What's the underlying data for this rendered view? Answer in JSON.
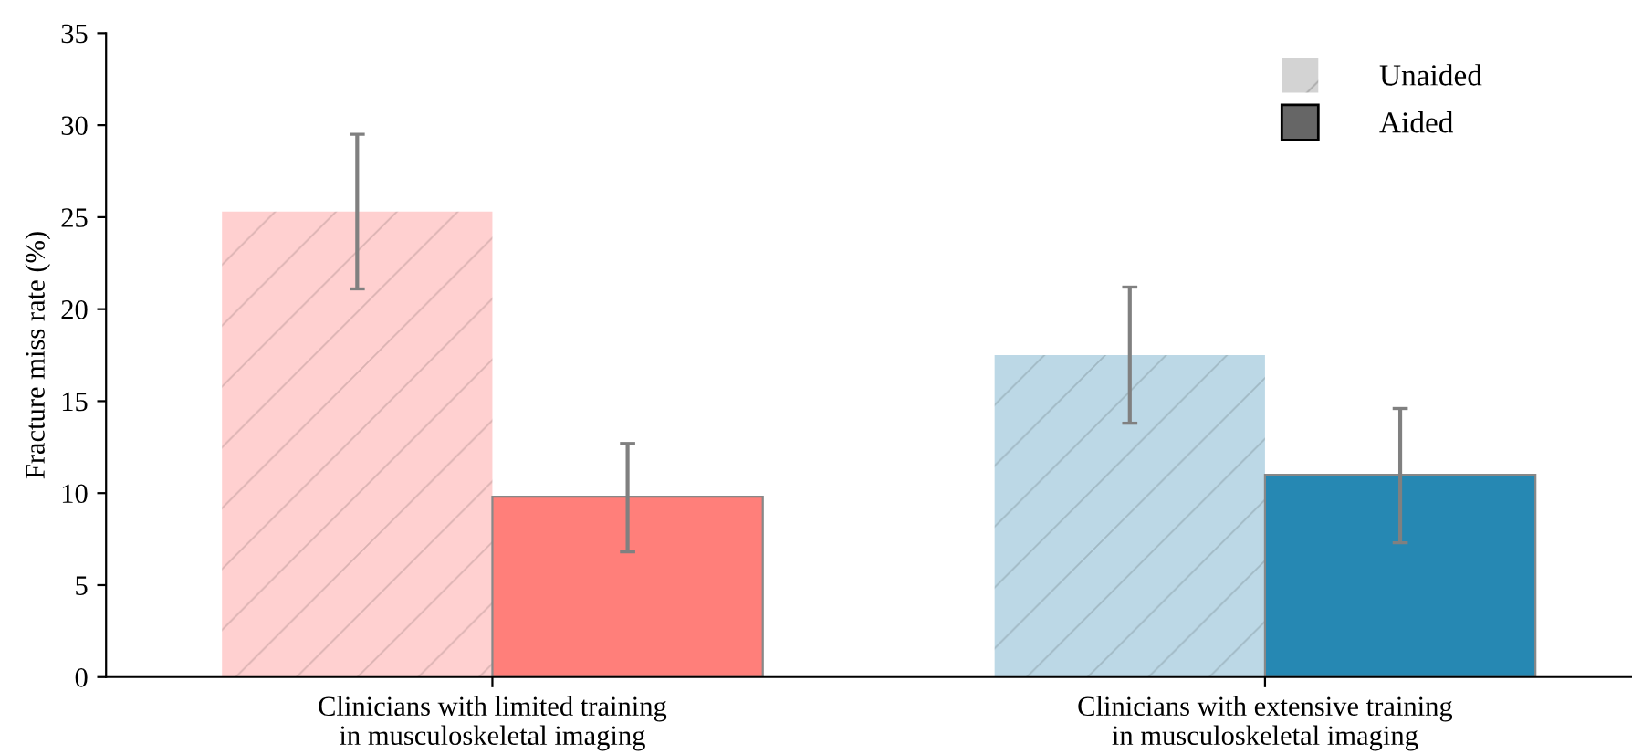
{
  "chart_data": {
    "type": "bar",
    "ylabel": "Fracture miss rate (%)",
    "categories": [
      "Clinicians with limited training\nin musculoskeletal imaging",
      "Clinicians with extensive training\nin musculoskeletal imaging"
    ],
    "series": [
      {
        "name": "Unaided",
        "color": "#d3d3d3",
        "colors": [
          "#ffd0d0",
          "#bcd8e6"
        ],
        "values": [
          25.3,
          17.5
        ],
        "errors": [
          [
            21.1,
            29.5
          ],
          [
            13.8,
            21.2
          ]
        ]
      },
      {
        "name": "Aided",
        "color": "#666666",
        "colors": [
          "#ff7f7a",
          "#2688b3"
        ],
        "values": [
          9.8,
          11.0
        ],
        "errors": [
          [
            6.8,
            12.7
          ],
          [
            7.3,
            14.6
          ]
        ]
      }
    ],
    "ylim": [
      0,
      35
    ],
    "yticks": [
      0,
      5,
      10,
      15,
      20,
      25,
      30,
      35
    ],
    "grid": false,
    "legend": "top right"
  }
}
